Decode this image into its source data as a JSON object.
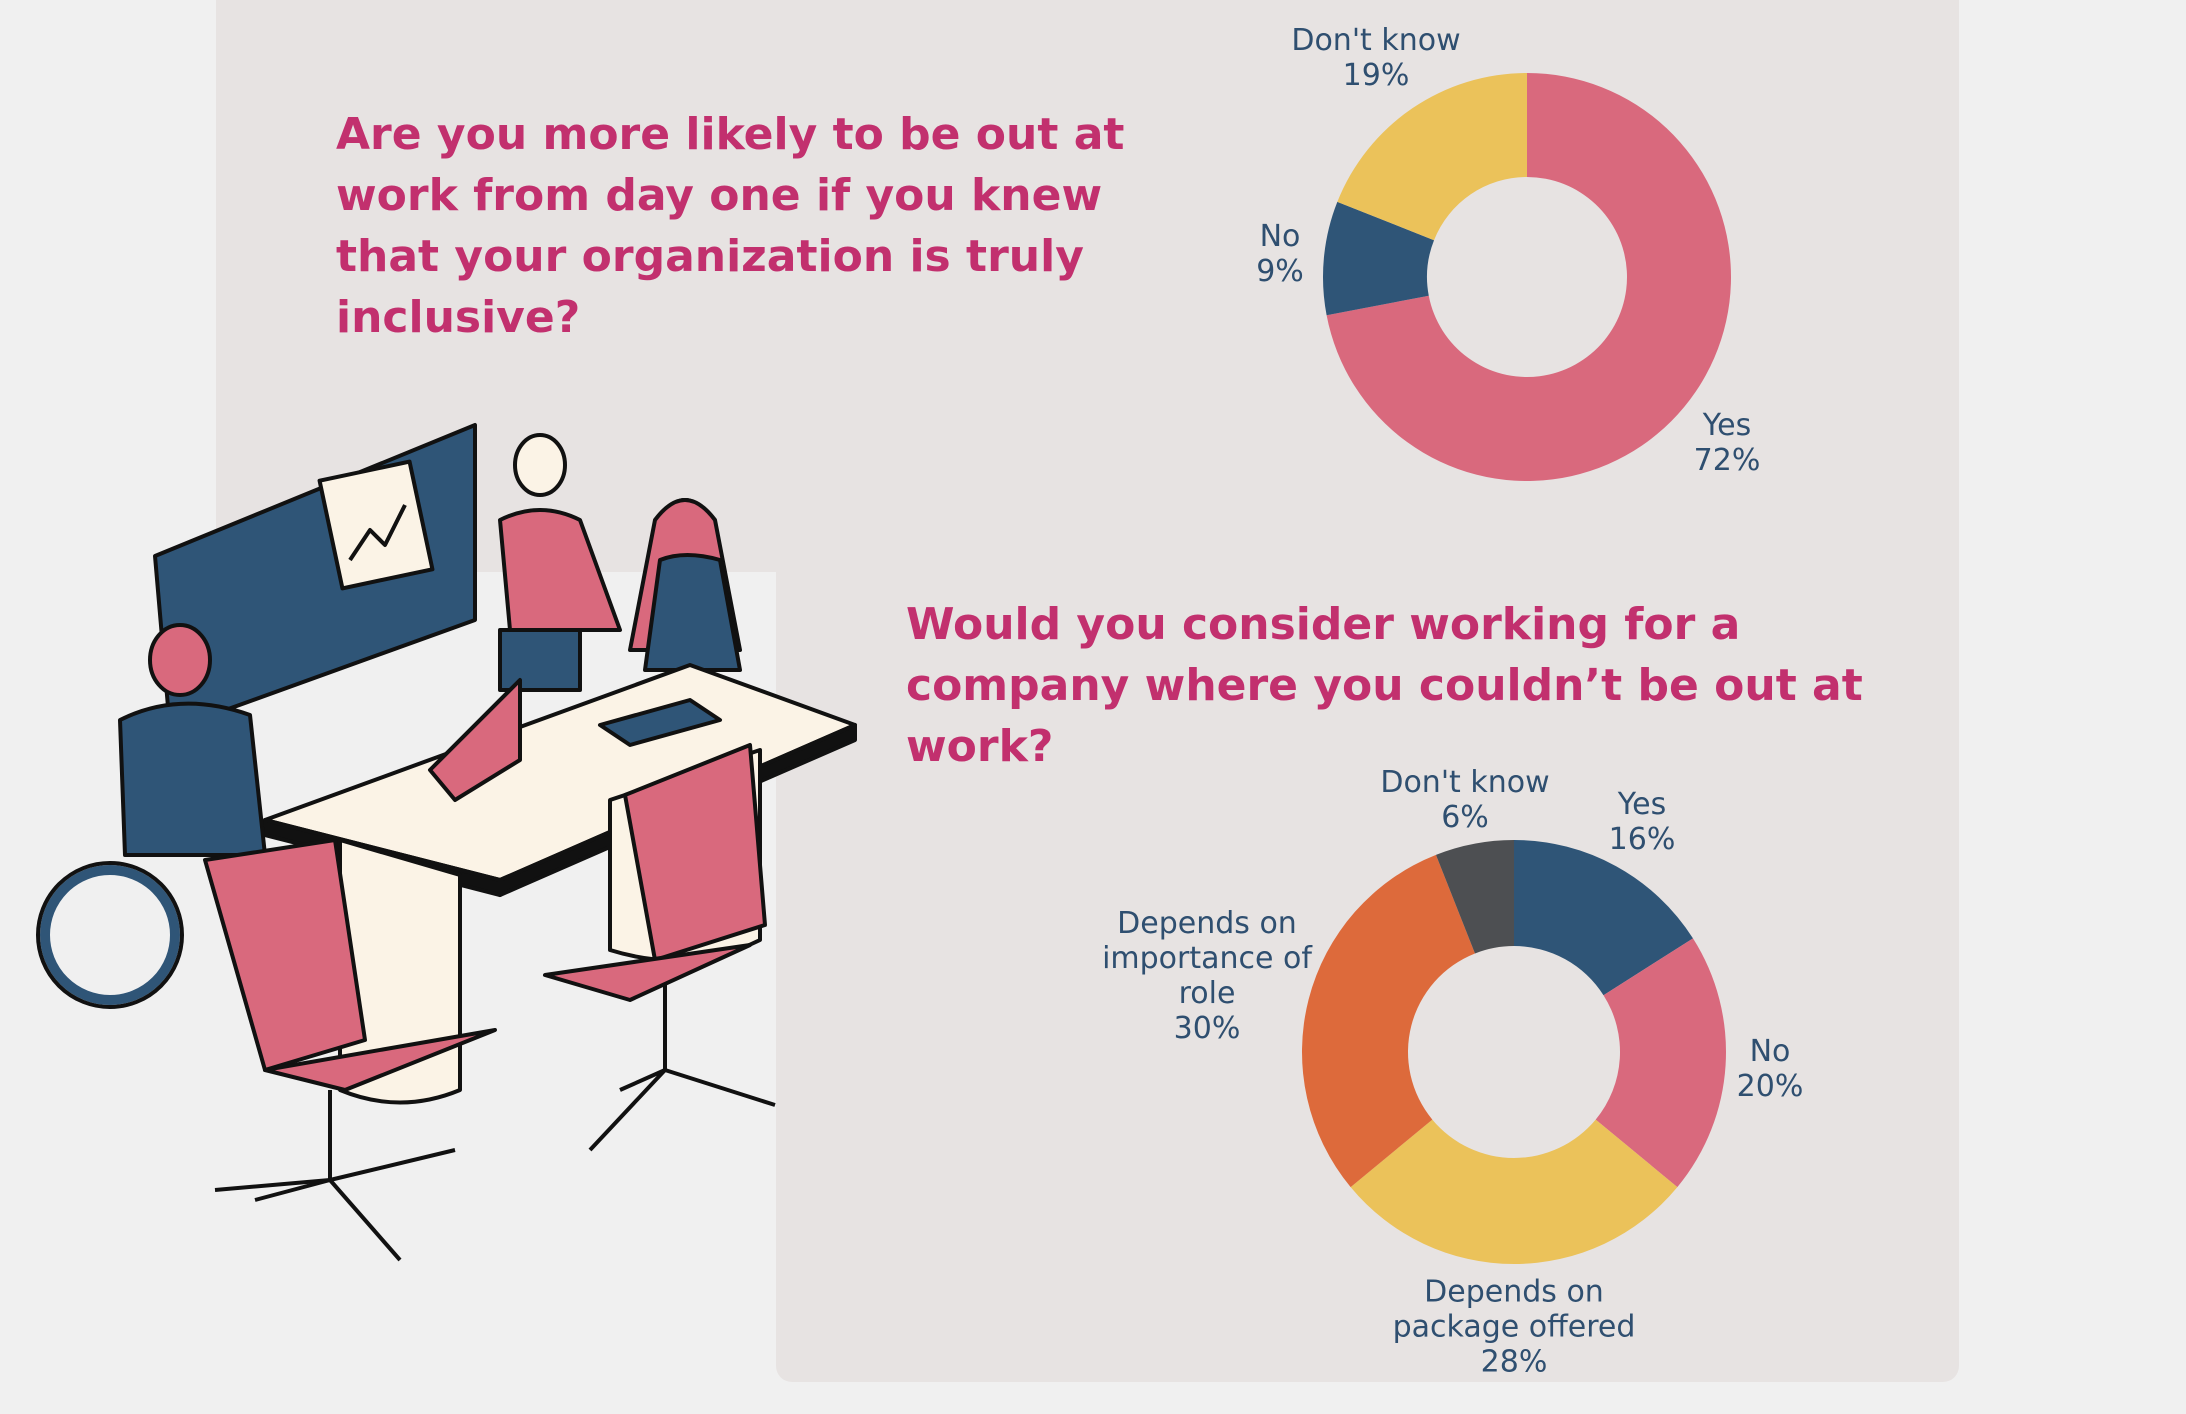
{
  "chart_data": [
    {
      "type": "donut",
      "title": "Are you more likely to be out at work from day one if you knew that your organization is truly inclusive?",
      "categories": [
        "Yes",
        "No",
        "Don't know"
      ],
      "values": [
        72,
        9,
        19
      ],
      "value_labels": [
        "72%",
        "9%",
        "19%"
      ],
      "colors": [
        "#d9697d",
        "#2f5577",
        "#ebc25a"
      ]
    },
    {
      "type": "donut",
      "title": "Would you consider working for a company where you couldn’t be out at work?",
      "categories": [
        "Yes",
        "No",
        "Depends on package offered",
        "Depends on importance of role",
        "Don't know"
      ],
      "values": [
        16,
        20,
        28,
        30,
        6
      ],
      "value_labels": [
        "16%",
        "20%",
        "28%",
        "30%",
        "6%"
      ],
      "colors": [
        "#2f5577",
        "#d9697d",
        "#ebc25a",
        "#dd6a3b",
        "#4d4f52"
      ]
    }
  ]
}
